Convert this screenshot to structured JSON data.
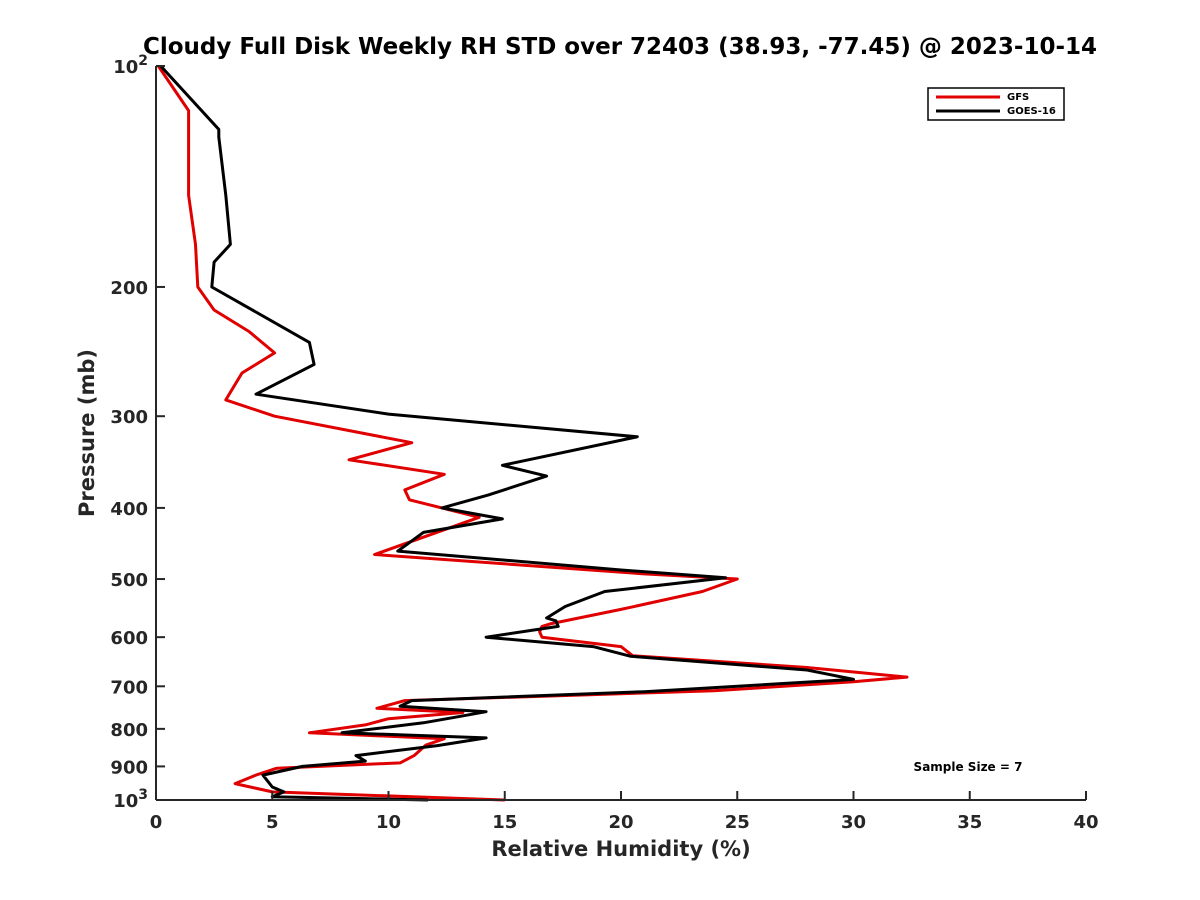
{
  "chart_data": {
    "type": "line",
    "title": "Cloudy Full Disk Weekly RH STD over 72403 (38.93, -77.45) @ 2023-10-14",
    "xlabel": "Relative Humidity (%)",
    "ylabel": "Pressure (mb)",
    "xlim": [
      0,
      40
    ],
    "ylim": [
      100,
      1000
    ],
    "y_scale": "log",
    "y_reversed": true,
    "grid": false,
    "legend_position": "top-right",
    "x_ticks": [
      "0",
      "5",
      "10",
      "15",
      "20",
      "25",
      "30",
      "35",
      "40"
    ],
    "y_ticks": [
      {
        "value": 100,
        "base": "10",
        "exp": "2",
        "label": ""
      },
      {
        "value": 200,
        "label": "200"
      },
      {
        "value": 300,
        "label": "300"
      },
      {
        "value": 400,
        "label": "400"
      },
      {
        "value": 500,
        "label": "500"
      },
      {
        "value": 600,
        "label": "600"
      },
      {
        "value": 700,
        "label": "700"
      },
      {
        "value": 800,
        "label": "800"
      },
      {
        "value": 900,
        "label": "900"
      },
      {
        "value": 1000,
        "base": "10",
        "exp": "3",
        "label": ""
      }
    ],
    "annotation": "Sample Size = 7",
    "series": [
      {
        "name": "GFS",
        "color": "#e00000",
        "points": [
          [
            0.1,
            100
          ],
          [
            1.4,
            115
          ],
          [
            1.4,
            125
          ],
          [
            1.4,
            150
          ],
          [
            1.7,
            175
          ],
          [
            1.8,
            200
          ],
          [
            2.5,
            215
          ],
          [
            4.0,
            230
          ],
          [
            5.1,
            246
          ],
          [
            3.7,
            262
          ],
          [
            3.0,
            285
          ],
          [
            5.1,
            300
          ],
          [
            11.0,
            326
          ],
          [
            8.3,
            344
          ],
          [
            12.4,
            360
          ],
          [
            10.7,
            378
          ],
          [
            10.9,
            390
          ],
          [
            13.9,
            412
          ],
          [
            9.4,
            463
          ],
          [
            21.0,
            492
          ],
          [
            25.0,
            500
          ],
          [
            23.5,
            520
          ],
          [
            20.0,
            550
          ],
          [
            17.0,
            575
          ],
          [
            16.6,
            580
          ],
          [
            16.5,
            590
          ],
          [
            16.6,
            600
          ],
          [
            20.0,
            618
          ],
          [
            20.5,
            636
          ],
          [
            28.0,
            660
          ],
          [
            32.3,
            680
          ],
          [
            30.0,
            690
          ],
          [
            24.0,
            710
          ],
          [
            10.7,
            732
          ],
          [
            9.5,
            750
          ],
          [
            13.2,
            760
          ],
          [
            10.0,
            775
          ],
          [
            9.0,
            790
          ],
          [
            6.6,
            810
          ],
          [
            12.4,
            825
          ],
          [
            11.6,
            842
          ],
          [
            11.1,
            870
          ],
          [
            10.5,
            890
          ],
          [
            5.2,
            905
          ],
          [
            4.3,
            925
          ],
          [
            3.4,
            950
          ],
          [
            5.0,
            975
          ],
          [
            15.0,
            1000
          ]
        ]
      },
      {
        "name": "GOES-16",
        "color": "#000000",
        "points": [
          [
            0.2,
            100
          ],
          [
            2.7,
            122
          ],
          [
            2.7,
            125
          ],
          [
            3.0,
            150
          ],
          [
            3.2,
            175
          ],
          [
            2.5,
            185
          ],
          [
            2.4,
            200
          ],
          [
            6.6,
            238
          ],
          [
            6.8,
            255
          ],
          [
            4.3,
            280
          ],
          [
            10.0,
            298
          ],
          [
            20.7,
            320
          ],
          [
            14.9,
            350
          ],
          [
            16.8,
            362
          ],
          [
            14.3,
            384
          ],
          [
            12.3,
            400
          ],
          [
            14.9,
            414
          ],
          [
            11.5,
            432
          ],
          [
            10.4,
            458
          ],
          [
            20.0,
            486
          ],
          [
            24.5,
            498
          ],
          [
            19.3,
            520
          ],
          [
            17.6,
            545
          ],
          [
            16.8,
            565
          ],
          [
            17.2,
            570
          ],
          [
            17.3,
            580
          ],
          [
            14.2,
            600
          ],
          [
            18.8,
            618
          ],
          [
            20.4,
            637
          ],
          [
            28.0,
            665
          ],
          [
            29.0,
            675
          ],
          [
            30.0,
            685
          ],
          [
            21.0,
            712
          ],
          [
            11.0,
            732
          ],
          [
            10.5,
            745
          ],
          [
            14.2,
            758
          ],
          [
            13.0,
            770
          ],
          [
            11.5,
            785
          ],
          [
            8.0,
            810
          ],
          [
            14.2,
            823
          ],
          [
            12.1,
            843
          ],
          [
            8.6,
            870
          ],
          [
            9.0,
            885
          ],
          [
            6.3,
            900
          ],
          [
            4.6,
            925
          ],
          [
            5.0,
            960
          ],
          [
            5.5,
            975
          ],
          [
            5.0,
            990
          ],
          [
            11.7,
            1000
          ]
        ]
      }
    ]
  }
}
